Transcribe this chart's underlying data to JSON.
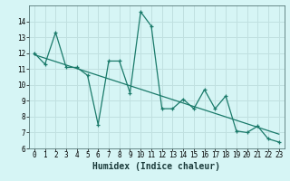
{
  "xlabel": "Humidex (Indice chaleur)",
  "background_color": "#d6f5f5",
  "grid_color": "#c0e0e0",
  "line_color": "#1a7a6a",
  "x_data": [
    0,
    1,
    2,
    3,
    4,
    5,
    6,
    7,
    8,
    9,
    10,
    11,
    12,
    13,
    14,
    15,
    16,
    17,
    18,
    19,
    20,
    21,
    22,
    23
  ],
  "y_data": [
    12.0,
    11.3,
    13.3,
    11.1,
    11.1,
    10.6,
    7.5,
    11.5,
    11.5,
    9.5,
    14.6,
    13.7,
    8.5,
    8.5,
    9.1,
    8.5,
    9.7,
    8.5,
    9.3,
    7.1,
    7.0,
    7.4,
    6.6,
    6.4
  ],
  "trend_x": [
    0,
    23
  ],
  "trend_y": [
    11.9,
    6.9
  ],
  "ylim": [
    6,
    15
  ],
  "xlim": [
    -0.5,
    23.5
  ],
  "yticks": [
    6,
    7,
    8,
    9,
    10,
    11,
    12,
    13,
    14
  ],
  "xticks": [
    0,
    1,
    2,
    3,
    4,
    5,
    6,
    7,
    8,
    9,
    10,
    11,
    12,
    13,
    14,
    15,
    16,
    17,
    18,
    19,
    20,
    21,
    22,
    23
  ],
  "tick_fontsize": 5.5,
  "xlabel_fontsize": 7.0
}
